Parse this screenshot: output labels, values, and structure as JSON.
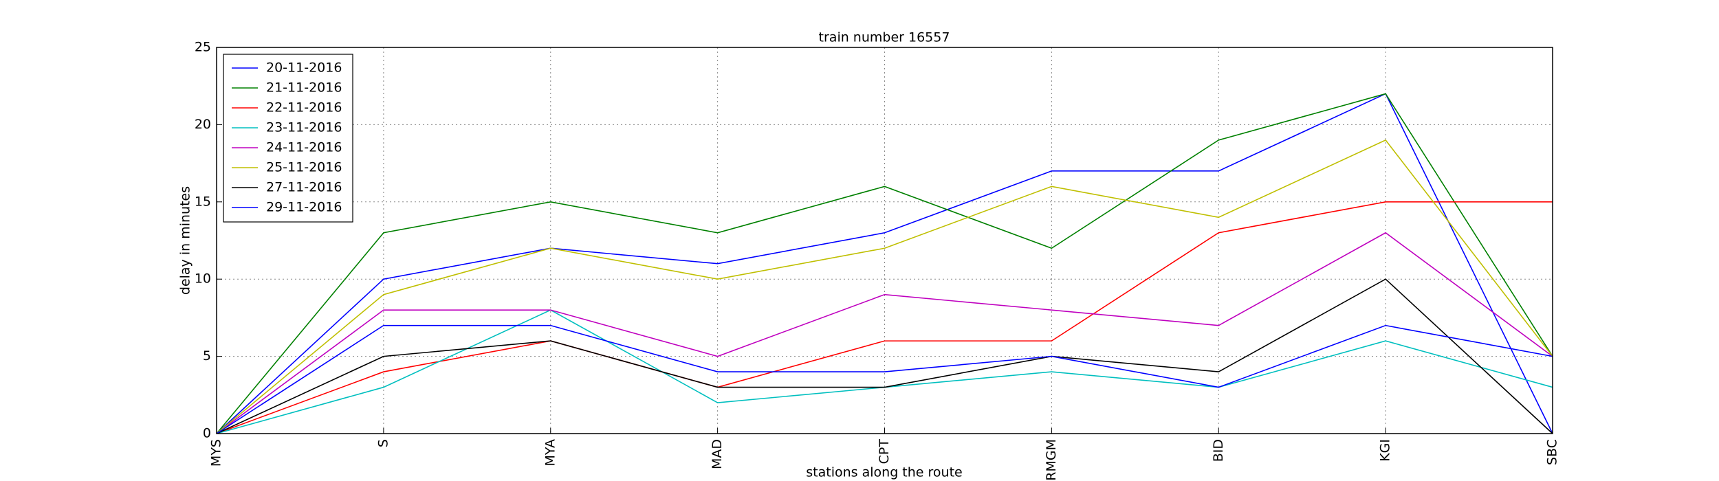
{
  "chart_data": {
    "type": "line",
    "title": "train number 16557",
    "xlabel": "stations along the route",
    "ylabel": "delay in minutes",
    "categories": [
      "MYS",
      "S",
      "MYA",
      "MAD",
      "CPT",
      "RMGM",
      "BID",
      "KGI",
      "SBC"
    ],
    "ylim": [
      0,
      25
    ],
    "yticks": [
      0,
      5,
      10,
      15,
      20,
      25
    ],
    "grid": true,
    "legend": "upper left",
    "series": [
      {
        "name": "20-11-2016",
        "color": "#0000ff",
        "values": [
          0,
          10,
          12,
          11,
          13,
          17,
          17,
          22,
          0
        ]
      },
      {
        "name": "21-11-2016",
        "color": "#008000",
        "values": [
          0,
          13,
          15,
          13,
          16,
          12,
          19,
          22,
          5
        ]
      },
      {
        "name": "22-11-2016",
        "color": "#ff0000",
        "values": [
          0,
          4,
          6,
          3,
          6,
          6,
          13,
          15,
          15
        ]
      },
      {
        "name": "23-11-2016",
        "color": "#00bfbf",
        "values": [
          0,
          3,
          8,
          2,
          3,
          4,
          3,
          6,
          3
        ]
      },
      {
        "name": "24-11-2016",
        "color": "#bf00bf",
        "values": [
          0,
          8,
          8,
          5,
          9,
          8,
          7,
          13,
          5
        ]
      },
      {
        "name": "25-11-2016",
        "color": "#bfbf00",
        "values": [
          0,
          9,
          12,
          10,
          12,
          16,
          14,
          19,
          5
        ]
      },
      {
        "name": "27-11-2016",
        "color": "#000000",
        "values": [
          0,
          5,
          6,
          3,
          3,
          5,
          4,
          10,
          0
        ]
      },
      {
        "name": "29-11-2016",
        "color": "#0000ff",
        "values": [
          0,
          7,
          7,
          4,
          4,
          5,
          3,
          7,
          5
        ]
      }
    ]
  }
}
